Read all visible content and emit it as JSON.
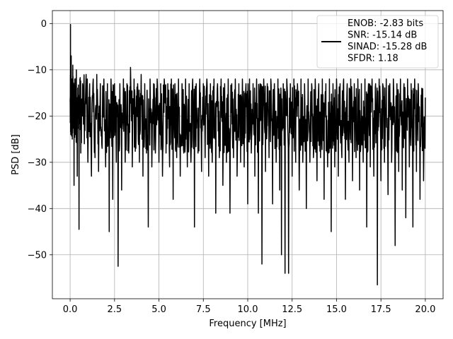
{
  "chart_data": {
    "type": "line",
    "xlabel": "Frequency [MHz]",
    "ylabel": "PSD [dB]",
    "xlim": [
      -1.0,
      21.0
    ],
    "ylim": [
      -59.5,
      2.8
    ],
    "x_ticks": [
      0.0,
      2.5,
      5.0,
      7.5,
      10.0,
      12.5,
      15.0,
      17.5,
      20.0
    ],
    "x_tick_labels": [
      "0.0",
      "2.5",
      "5.0",
      "7.5",
      "10.0",
      "12.5",
      "15.0",
      "17.5",
      "20.0"
    ],
    "y_ticks": [
      0,
      -10,
      -20,
      -30,
      -40,
      -50
    ],
    "y_tick_labels": [
      "0",
      "−10",
      "−20",
      "−30",
      "−40",
      "−50"
    ],
    "grid": true,
    "legend_position": "top-right",
    "line_color": "#000000",
    "series": [
      {
        "legend_lines": [
          "ENOB: -2.83 bits",
          "SNR: -15.14 dB",
          "SINAD: -15.28 dB",
          "SFDR: 1.18"
        ],
        "x_range": [
          0.0,
          20.0
        ],
        "points": [
          [
            0.0,
            -17
          ],
          [
            0.02,
            -0.2
          ],
          [
            0.04,
            -24
          ],
          [
            0.06,
            -7
          ],
          [
            0.08,
            -22
          ],
          [
            0.1,
            -12
          ],
          [
            0.12,
            -25
          ],
          [
            0.15,
            -9
          ],
          [
            0.18,
            -20
          ],
          [
            0.22,
            -35
          ],
          [
            0.26,
            -12
          ],
          [
            0.3,
            -24
          ],
          [
            0.35,
            -10
          ],
          [
            0.4,
            -33
          ],
          [
            0.45,
            -14
          ],
          [
            0.5,
            -44.5
          ],
          [
            0.55,
            -12
          ],
          [
            0.6,
            -28
          ],
          [
            0.7,
            -13
          ],
          [
            0.8,
            -26
          ],
          [
            0.9,
            -11
          ],
          [
            1.0,
            -30
          ],
          [
            1.1,
            -13
          ],
          [
            1.2,
            -33
          ],
          [
            1.3,
            -12
          ],
          [
            1.4,
            -29
          ],
          [
            1.5,
            -11
          ],
          [
            1.6,
            -32
          ],
          [
            1.7,
            -13
          ],
          [
            1.8,
            -27
          ],
          [
            1.9,
            -12
          ],
          [
            2.0,
            -31
          ],
          [
            2.1,
            -13
          ],
          [
            2.2,
            -45
          ],
          [
            2.3,
            -12
          ],
          [
            2.4,
            -38
          ],
          [
            2.5,
            -13
          ],
          [
            2.6,
            -30
          ],
          [
            2.7,
            -52.5
          ],
          [
            2.8,
            -13
          ],
          [
            2.9,
            -36
          ],
          [
            3.0,
            -12
          ],
          [
            3.1,
            -30
          ],
          [
            3.2,
            -13
          ],
          [
            3.3,
            -28
          ],
          [
            3.4,
            -9.5
          ],
          [
            3.5,
            -31
          ],
          [
            3.6,
            -12
          ],
          [
            3.7,
            -27
          ],
          [
            3.8,
            -13
          ],
          [
            3.9,
            -30
          ],
          [
            4.0,
            -11
          ],
          [
            4.1,
            -33
          ],
          [
            4.2,
            -13
          ],
          [
            4.3,
            -28
          ],
          [
            4.4,
            -44
          ],
          [
            4.5,
            -12
          ],
          [
            4.6,
            -31
          ],
          [
            4.7,
            -13
          ],
          [
            4.8,
            -28
          ],
          [
            4.9,
            -12
          ],
          [
            5.0,
            -30
          ],
          [
            5.1,
            -13
          ],
          [
            5.2,
            -33
          ],
          [
            5.3,
            -12
          ],
          [
            5.4,
            -28
          ],
          [
            5.5,
            -13
          ],
          [
            5.6,
            -31
          ],
          [
            5.7,
            -12
          ],
          [
            5.8,
            -38
          ],
          [
            5.9,
            -13
          ],
          [
            6.0,
            -29
          ],
          [
            6.1,
            -12
          ],
          [
            6.2,
            -33
          ],
          [
            6.3,
            -13
          ],
          [
            6.4,
            -28
          ],
          [
            6.5,
            -12
          ],
          [
            6.6,
            -31
          ],
          [
            6.7,
            -13
          ],
          [
            6.8,
            -30
          ],
          [
            6.9,
            -12
          ],
          [
            7.0,
            -44
          ],
          [
            7.1,
            -13
          ],
          [
            7.2,
            -28
          ],
          [
            7.3,
            -12
          ],
          [
            7.4,
            -32
          ],
          [
            7.5,
            -13
          ],
          [
            7.6,
            -29
          ],
          [
            7.7,
            -12
          ],
          [
            7.8,
            -33
          ],
          [
            7.9,
            -13
          ],
          [
            8.0,
            -30
          ],
          [
            8.1,
            -12
          ],
          [
            8.2,
            -41
          ],
          [
            8.3,
            -13
          ],
          [
            8.4,
            -29
          ],
          [
            8.5,
            -12
          ],
          [
            8.6,
            -35
          ],
          [
            8.7,
            -13
          ],
          [
            8.8,
            -30
          ],
          [
            8.9,
            -12
          ],
          [
            9.0,
            -41
          ],
          [
            9.1,
            -13
          ],
          [
            9.2,
            -29
          ],
          [
            9.3,
            -12
          ],
          [
            9.4,
            -33
          ],
          [
            9.5,
            -13
          ],
          [
            9.6,
            -30
          ],
          [
            9.7,
            -12
          ],
          [
            9.8,
            -31
          ],
          [
            9.9,
            -13
          ],
          [
            10.0,
            -39
          ],
          [
            10.1,
            -12
          ],
          [
            10.2,
            -28
          ],
          [
            10.3,
            -13
          ],
          [
            10.4,
            -33
          ],
          [
            10.5,
            -12
          ],
          [
            10.6,
            -41
          ],
          [
            10.7,
            -13
          ],
          [
            10.8,
            -52
          ],
          [
            10.9,
            -12
          ],
          [
            11.0,
            -32
          ],
          [
            11.1,
            -13
          ],
          [
            11.2,
            -29
          ],
          [
            11.3,
            -12
          ],
          [
            11.4,
            -39
          ],
          [
            11.5,
            -13
          ],
          [
            11.6,
            -30
          ],
          [
            11.7,
            -12
          ],
          [
            11.8,
            -36
          ],
          [
            11.9,
            -50
          ],
          [
            12.0,
            -13
          ],
          [
            12.1,
            -54
          ],
          [
            12.2,
            -12
          ],
          [
            12.3,
            -54
          ],
          [
            12.4,
            -13
          ],
          [
            12.5,
            -33
          ],
          [
            12.6,
            -12
          ],
          [
            12.7,
            -30
          ],
          [
            12.8,
            -13
          ],
          [
            12.9,
            -36
          ],
          [
            13.0,
            -12
          ],
          [
            13.1,
            -30
          ],
          [
            13.2,
            -13
          ],
          [
            13.3,
            -40
          ],
          [
            13.4,
            -12
          ],
          [
            13.5,
            -30
          ],
          [
            13.6,
            -13
          ],
          [
            13.7,
            -29
          ],
          [
            13.8,
            -12
          ],
          [
            13.9,
            -34
          ],
          [
            14.0,
            -13
          ],
          [
            14.1,
            -29
          ],
          [
            14.2,
            -12
          ],
          [
            14.3,
            -38
          ],
          [
            14.4,
            -13
          ],
          [
            14.5,
            -31
          ],
          [
            14.6,
            -12
          ],
          [
            14.7,
            -45
          ],
          [
            14.8,
            -13
          ],
          [
            14.9,
            -31
          ],
          [
            15.0,
            -12
          ],
          [
            15.1,
            -33
          ],
          [
            15.2,
            -13
          ],
          [
            15.3,
            -29
          ],
          [
            15.4,
            -12
          ],
          [
            15.5,
            -38
          ],
          [
            15.6,
            -13
          ],
          [
            15.7,
            -30
          ],
          [
            15.8,
            -12
          ],
          [
            15.9,
            -34
          ],
          [
            16.0,
            -13
          ],
          [
            16.1,
            -29
          ],
          [
            16.2,
            -12
          ],
          [
            16.3,
            -36
          ],
          [
            16.4,
            -13
          ],
          [
            16.5,
            -30
          ],
          [
            16.6,
            -12
          ],
          [
            16.7,
            -44
          ],
          [
            16.8,
            -13
          ],
          [
            16.9,
            -31
          ],
          [
            17.0,
            -12
          ],
          [
            17.1,
            -33
          ],
          [
            17.2,
            -13
          ],
          [
            17.3,
            -56.5
          ],
          [
            17.4,
            -12
          ],
          [
            17.5,
            -34
          ],
          [
            17.6,
            -13
          ],
          [
            17.7,
            -30
          ],
          [
            17.8,
            -12
          ],
          [
            17.9,
            -37
          ],
          [
            18.0,
            -13
          ],
          [
            18.1,
            -30
          ],
          [
            18.2,
            -12
          ],
          [
            18.3,
            -48
          ],
          [
            18.4,
            -13
          ],
          [
            18.5,
            -32
          ],
          [
            18.6,
            -12
          ],
          [
            18.7,
            -36
          ],
          [
            18.8,
            -13
          ],
          [
            18.9,
            -42
          ],
          [
            19.0,
            -12
          ],
          [
            19.1,
            -31
          ],
          [
            19.2,
            -13
          ],
          [
            19.3,
            -44
          ],
          [
            19.4,
            -12
          ],
          [
            19.5,
            -32
          ],
          [
            19.6,
            -13
          ],
          [
            19.7,
            -38
          ],
          [
            19.8,
            -14
          ],
          [
            19.9,
            -34
          ],
          [
            20.0,
            -16
          ]
        ]
      }
    ]
  }
}
